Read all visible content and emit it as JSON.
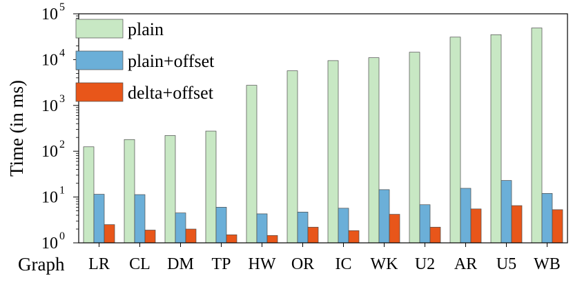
{
  "chart_data": {
    "type": "bar",
    "title": "",
    "xlabel": "Graph",
    "ylabel": "Time (in ms)",
    "yscale": "log",
    "ylim": [
      1,
      100000
    ],
    "yticks": [
      {
        "base": "10",
        "exp": "0",
        "value": 1
      },
      {
        "base": "10",
        "exp": "1",
        "value": 10
      },
      {
        "base": "10",
        "exp": "2",
        "value": 100
      },
      {
        "base": "10",
        "exp": "3",
        "value": 1000
      },
      {
        "base": "10",
        "exp": "4",
        "value": 10000
      },
      {
        "base": "10",
        "exp": "5",
        "value": 100000
      }
    ],
    "categories": [
      "LR",
      "CL",
      "DM",
      "TP",
      "HW",
      "OR",
      "IC",
      "WK",
      "U2",
      "AR",
      "U5",
      "WB"
    ],
    "series": [
      {
        "name": "plain",
        "color": "#c8e8c4",
        "values": [
          125,
          180,
          220,
          275,
          2750,
          5700,
          9500,
          11000,
          14500,
          31000,
          35000,
          49000
        ]
      },
      {
        "name": "plain+offset",
        "color": "#6bafd8",
        "values": [
          11.5,
          11.3,
          4.5,
          6.0,
          4.3,
          4.7,
          5.7,
          14.5,
          6.8,
          15.5,
          23,
          12
        ]
      },
      {
        "name": "delta+offset",
        "color": "#e8561a",
        "values": [
          2.5,
          1.9,
          2.0,
          1.5,
          1.45,
          2.2,
          1.85,
          4.2,
          2.2,
          5.5,
          6.5,
          5.3
        ]
      }
    ],
    "legend_position": "top-left",
    "grid": false
  }
}
